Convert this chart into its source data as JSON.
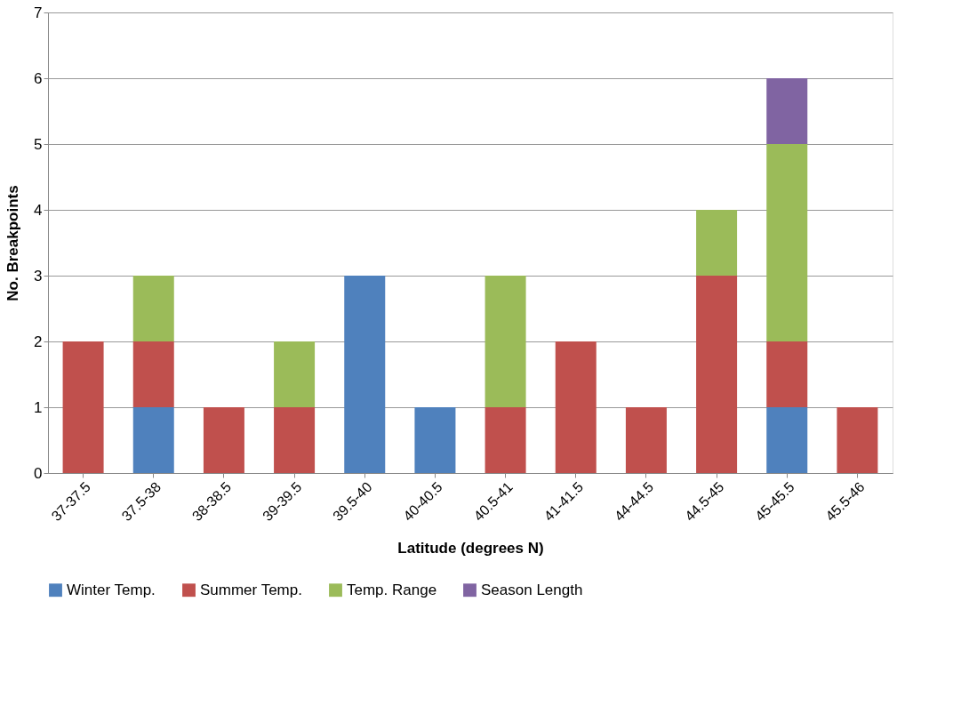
{
  "chart_data": {
    "type": "bar",
    "stacked": true,
    "categories": [
      "37-37.5",
      "37.5-38",
      "38-38.5",
      "39-39.5",
      "39.5-40",
      "40-40.5",
      "40.5-41",
      "41-41.5",
      "44-44.5",
      "44.5-45",
      "45-45.5",
      "45.5-46"
    ],
    "series": [
      {
        "name": "Winter Temp.",
        "color": "#4f81bd",
        "values": [
          0,
          1,
          0,
          0,
          3,
          1,
          0,
          0,
          0,
          0,
          1,
          0
        ]
      },
      {
        "name": "Summer Temp.",
        "color": "#c0504d",
        "values": [
          2,
          1,
          1,
          1,
          0,
          0,
          1,
          2,
          1,
          3,
          1,
          1
        ]
      },
      {
        "name": "Temp. Range",
        "color": "#9bbb59",
        "values": [
          0,
          1,
          0,
          1,
          0,
          0,
          2,
          0,
          0,
          1,
          3,
          0
        ]
      },
      {
        "name": "Season Length",
        "color": "#8064a2",
        "values": [
          0,
          0,
          0,
          0,
          0,
          0,
          0,
          0,
          0,
          0,
          1,
          0
        ]
      }
    ],
    "xlabel": "Latitude (degrees N)",
    "ylabel": "No. Breakpoints",
    "ylim": [
      0,
      7
    ],
    "yticks": [
      0,
      1,
      2,
      3,
      4,
      5,
      6,
      7
    ],
    "grid": "y",
    "legend": "bottom"
  }
}
